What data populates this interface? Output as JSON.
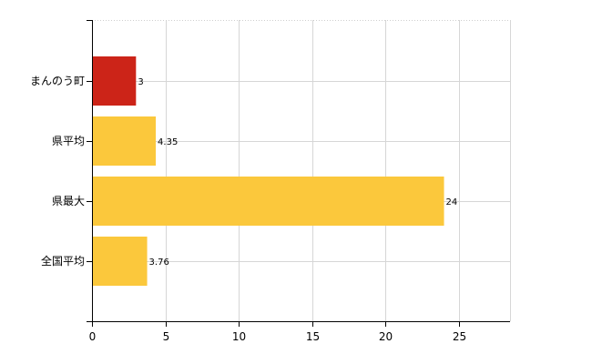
{
  "chart_data": {
    "type": "bar",
    "orientation": "horizontal",
    "categories": [
      "まんのう町",
      "県平均",
      "県最大",
      "全国平均"
    ],
    "values": [
      3,
      4.35,
      24,
      3.76
    ],
    "value_labels": [
      "3",
      "4.35",
      "24",
      "3.76"
    ],
    "colors": [
      "#cc2418",
      "#fbc83c",
      "#fbc83c",
      "#fbc83c"
    ],
    "xlim": [
      0,
      28.5
    ],
    "xticks": [
      0,
      5,
      10,
      15,
      20,
      25
    ],
    "grid": true,
    "legend": "none",
    "title": "",
    "xlabel": "",
    "ylabel": ""
  }
}
